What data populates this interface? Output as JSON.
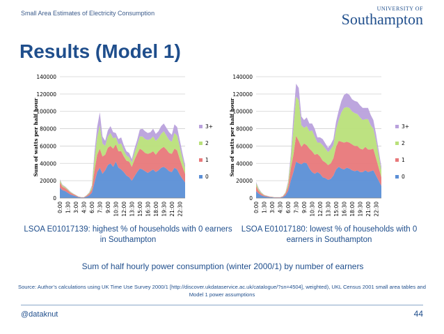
{
  "header": {
    "title": "Small Area Estimates of Electricity Consumption",
    "logo_top": "UNIVERSITY OF",
    "logo_name": "Southampton"
  },
  "slide": {
    "title": "Results (Model 1)",
    "caption_left": "LSOA E01017139: highest % of households with 0 earners in Southampton",
    "caption_right": "LSOA E01017180: lowest % of households with 0 earners in Southampton",
    "subtitle": "Sum of half hourly power consumption (winter 2000/1) by number of earners",
    "source": "Source: Author’s calculations using UK Time Use Survey 2000/1 [http://discover.ukdataservice.ac.uk/catalogue/?sn=4504], weighted), UKL Census 2001 small area tables and Model 1 power assumptions"
  },
  "footer": {
    "handle": "@dataknut",
    "page_number": "44"
  },
  "colors": {
    "s0": "#5b8fd6",
    "s1": "#e8787a",
    "s2": "#b9e07a",
    "s3": "#b9a1dc",
    "accent": "#1f4e8c"
  },
  "chart_data": [
    {
      "type": "area",
      "stacked": true,
      "ylabel": "Sum of watts per half hour",
      "ylim": [
        0,
        140000
      ],
      "yticks": [
        "0",
        "20000",
        "40000",
        "60000",
        "80000",
        "100000",
        "120000",
        "140000"
      ],
      "xticks": [
        "0:00",
        "1:30",
        "3:00",
        "4:30",
        "6:00",
        "7:30",
        "9:00",
        "10:30",
        "12:00",
        "13:30",
        "15:00",
        "16:30",
        "18:00",
        "19:30",
        "21:00",
        "22:30"
      ],
      "legend": [
        "3+",
        "2",
        "1",
        "0"
      ],
      "legend_position": "right",
      "series": [
        {
          "name": "0",
          "values": [
            12000,
            9000,
            8000,
            6000,
            4000,
            3000,
            2000,
            1000,
            600,
            500,
            1500,
            3000,
            6000,
            18000,
            30000,
            35000,
            28000,
            32000,
            38000,
            40000,
            36000,
            42000,
            35000,
            33000,
            30000,
            26000,
            24000,
            20000,
            25000,
            30000,
            34000,
            33000,
            31000,
            29000,
            31000,
            33000,
            30000,
            32000,
            35000,
            36000,
            34000,
            31000,
            30000,
            35000,
            33000,
            27000,
            22000,
            18000
          ]
        },
        {
          "name": "1",
          "values": [
            6000,
            4000,
            3500,
            3000,
            2200,
            1500,
            1000,
            500,
            300,
            300,
            1000,
            2000,
            4000,
            14000,
            20000,
            22000,
            20000,
            18000,
            20000,
            20000,
            21000,
            20000,
            19000,
            21000,
            18000,
            17000,
            18000,
            16000,
            19000,
            21000,
            23000,
            22000,
            21000,
            22000,
            21000,
            21000,
            20000,
            22000,
            22000,
            23000,
            22000,
            21000,
            21000,
            22000,
            22000,
            18000,
            14000,
            10000
          ]
        },
        {
          "name": "2",
          "values": [
            2500,
            1500,
            1200,
            1000,
            800,
            500,
            400,
            200,
            100,
            100,
            500,
            1000,
            3000,
            13000,
            20000,
            27000,
            15000,
            10000,
            13000,
            15000,
            12000,
            8000,
            8000,
            9000,
            7000,
            6000,
            5000,
            5000,
            8000,
            10000,
            14000,
            16000,
            16000,
            16000,
            16000,
            17000,
            16000,
            15000,
            17000,
            18000,
            16000,
            15000,
            14000,
            18000,
            17000,
            14000,
            10000,
            6000
          ]
        },
        {
          "name": "3+",
          "values": [
            1000,
            800,
            600,
            500,
            400,
            300,
            200,
            100,
            100,
            100,
            300,
            500,
            1500,
            8000,
            12000,
            15000,
            8000,
            6000,
            7000,
            8000,
            7000,
            5000,
            6000,
            7000,
            6000,
            5000,
            5000,
            4000,
            5000,
            6000,
            8000,
            9000,
            9000,
            8000,
            8000,
            9000,
            8000,
            8000,
            9000,
            9000,
            9000,
            9000,
            8000,
            10000,
            10000,
            8000,
            6000,
            4000
          ]
        }
      ]
    },
    {
      "type": "area",
      "stacked": true,
      "ylabel": "Sum of watts per half hour",
      "ylim": [
        0,
        140000
      ],
      "yticks": [
        "0",
        "20000",
        "40000",
        "60000",
        "80000",
        "100000",
        "120000",
        "140000"
      ],
      "xticks": [
        "0:00",
        "1:30",
        "3:00",
        "4:30",
        "6:00",
        "7:30",
        "9:00",
        "10:30",
        "12:00",
        "13:30",
        "15:00",
        "16:30",
        "18:00",
        "19:30",
        "21:00",
        "22:30"
      ],
      "legend": [
        "3+",
        "2",
        "1",
        "0"
      ],
      "legend_position": "right",
      "series": [
        {
          "name": "0",
          "values": [
            8000,
            5000,
            3000,
            2000,
            1500,
            1000,
            800,
            500,
            500,
            500,
            1000,
            3000,
            8000,
            20000,
            30000,
            42000,
            40000,
            39000,
            41000,
            40000,
            34000,
            30000,
            28000,
            30000,
            28000,
            24000,
            23000,
            21000,
            22000,
            26000,
            33000,
            36000,
            34000,
            33000,
            35000,
            34000,
            32000,
            31000,
            32000,
            30000,
            30000,
            32000,
            30000,
            31000,
            32000,
            26000,
            20000,
            14000
          ]
        },
        {
          "name": "1",
          "values": [
            6000,
            3000,
            2000,
            1000,
            800,
            600,
            400,
            300,
            300,
            300,
            700,
            2000,
            5000,
            14000,
            20000,
            30000,
            26000,
            20000,
            22000,
            21000,
            23000,
            24000,
            22000,
            21000,
            20000,
            19000,
            18000,
            17000,
            18000,
            20000,
            26000,
            30000,
            31000,
            31000,
            30000,
            30000,
            30000,
            29000,
            28000,
            27000,
            26000,
            27000,
            26000,
            25000,
            25000,
            20000,
            15000,
            10000
          ]
        },
        {
          "name": "2",
          "values": [
            3000,
            2000,
            1000,
            500,
            300,
            200,
            200,
            100,
            100,
            100,
            300,
            1000,
            4000,
            10000,
            30000,
            45000,
            47000,
            25000,
            18000,
            22000,
            20000,
            24000,
            21000,
            13000,
            16000,
            18000,
            16000,
            15000,
            16000,
            15000,
            20000,
            24000,
            34000,
            40000,
            40000,
            40000,
            38000,
            38000,
            37000,
            36000,
            34000,
            32000,
            35000,
            28000,
            23000,
            20000,
            14000,
            8000
          ]
        },
        {
          "name": "3+",
          "values": [
            1500,
            1000,
            500,
            300,
            200,
            100,
            100,
            100,
            100,
            100,
            300,
            500,
            2000,
            6000,
            15000,
            15000,
            14000,
            10000,
            9000,
            10000,
            9000,
            8000,
            9000,
            6000,
            6000,
            7000,
            6000,
            5000,
            6000,
            7000,
            9000,
            11000,
            13000,
            15000,
            16000,
            15000,
            14000,
            14000,
            14000,
            14000,
            14000,
            13000,
            13000,
            12000,
            10000,
            8000,
            6000,
            4000
          ]
        }
      ]
    }
  ]
}
